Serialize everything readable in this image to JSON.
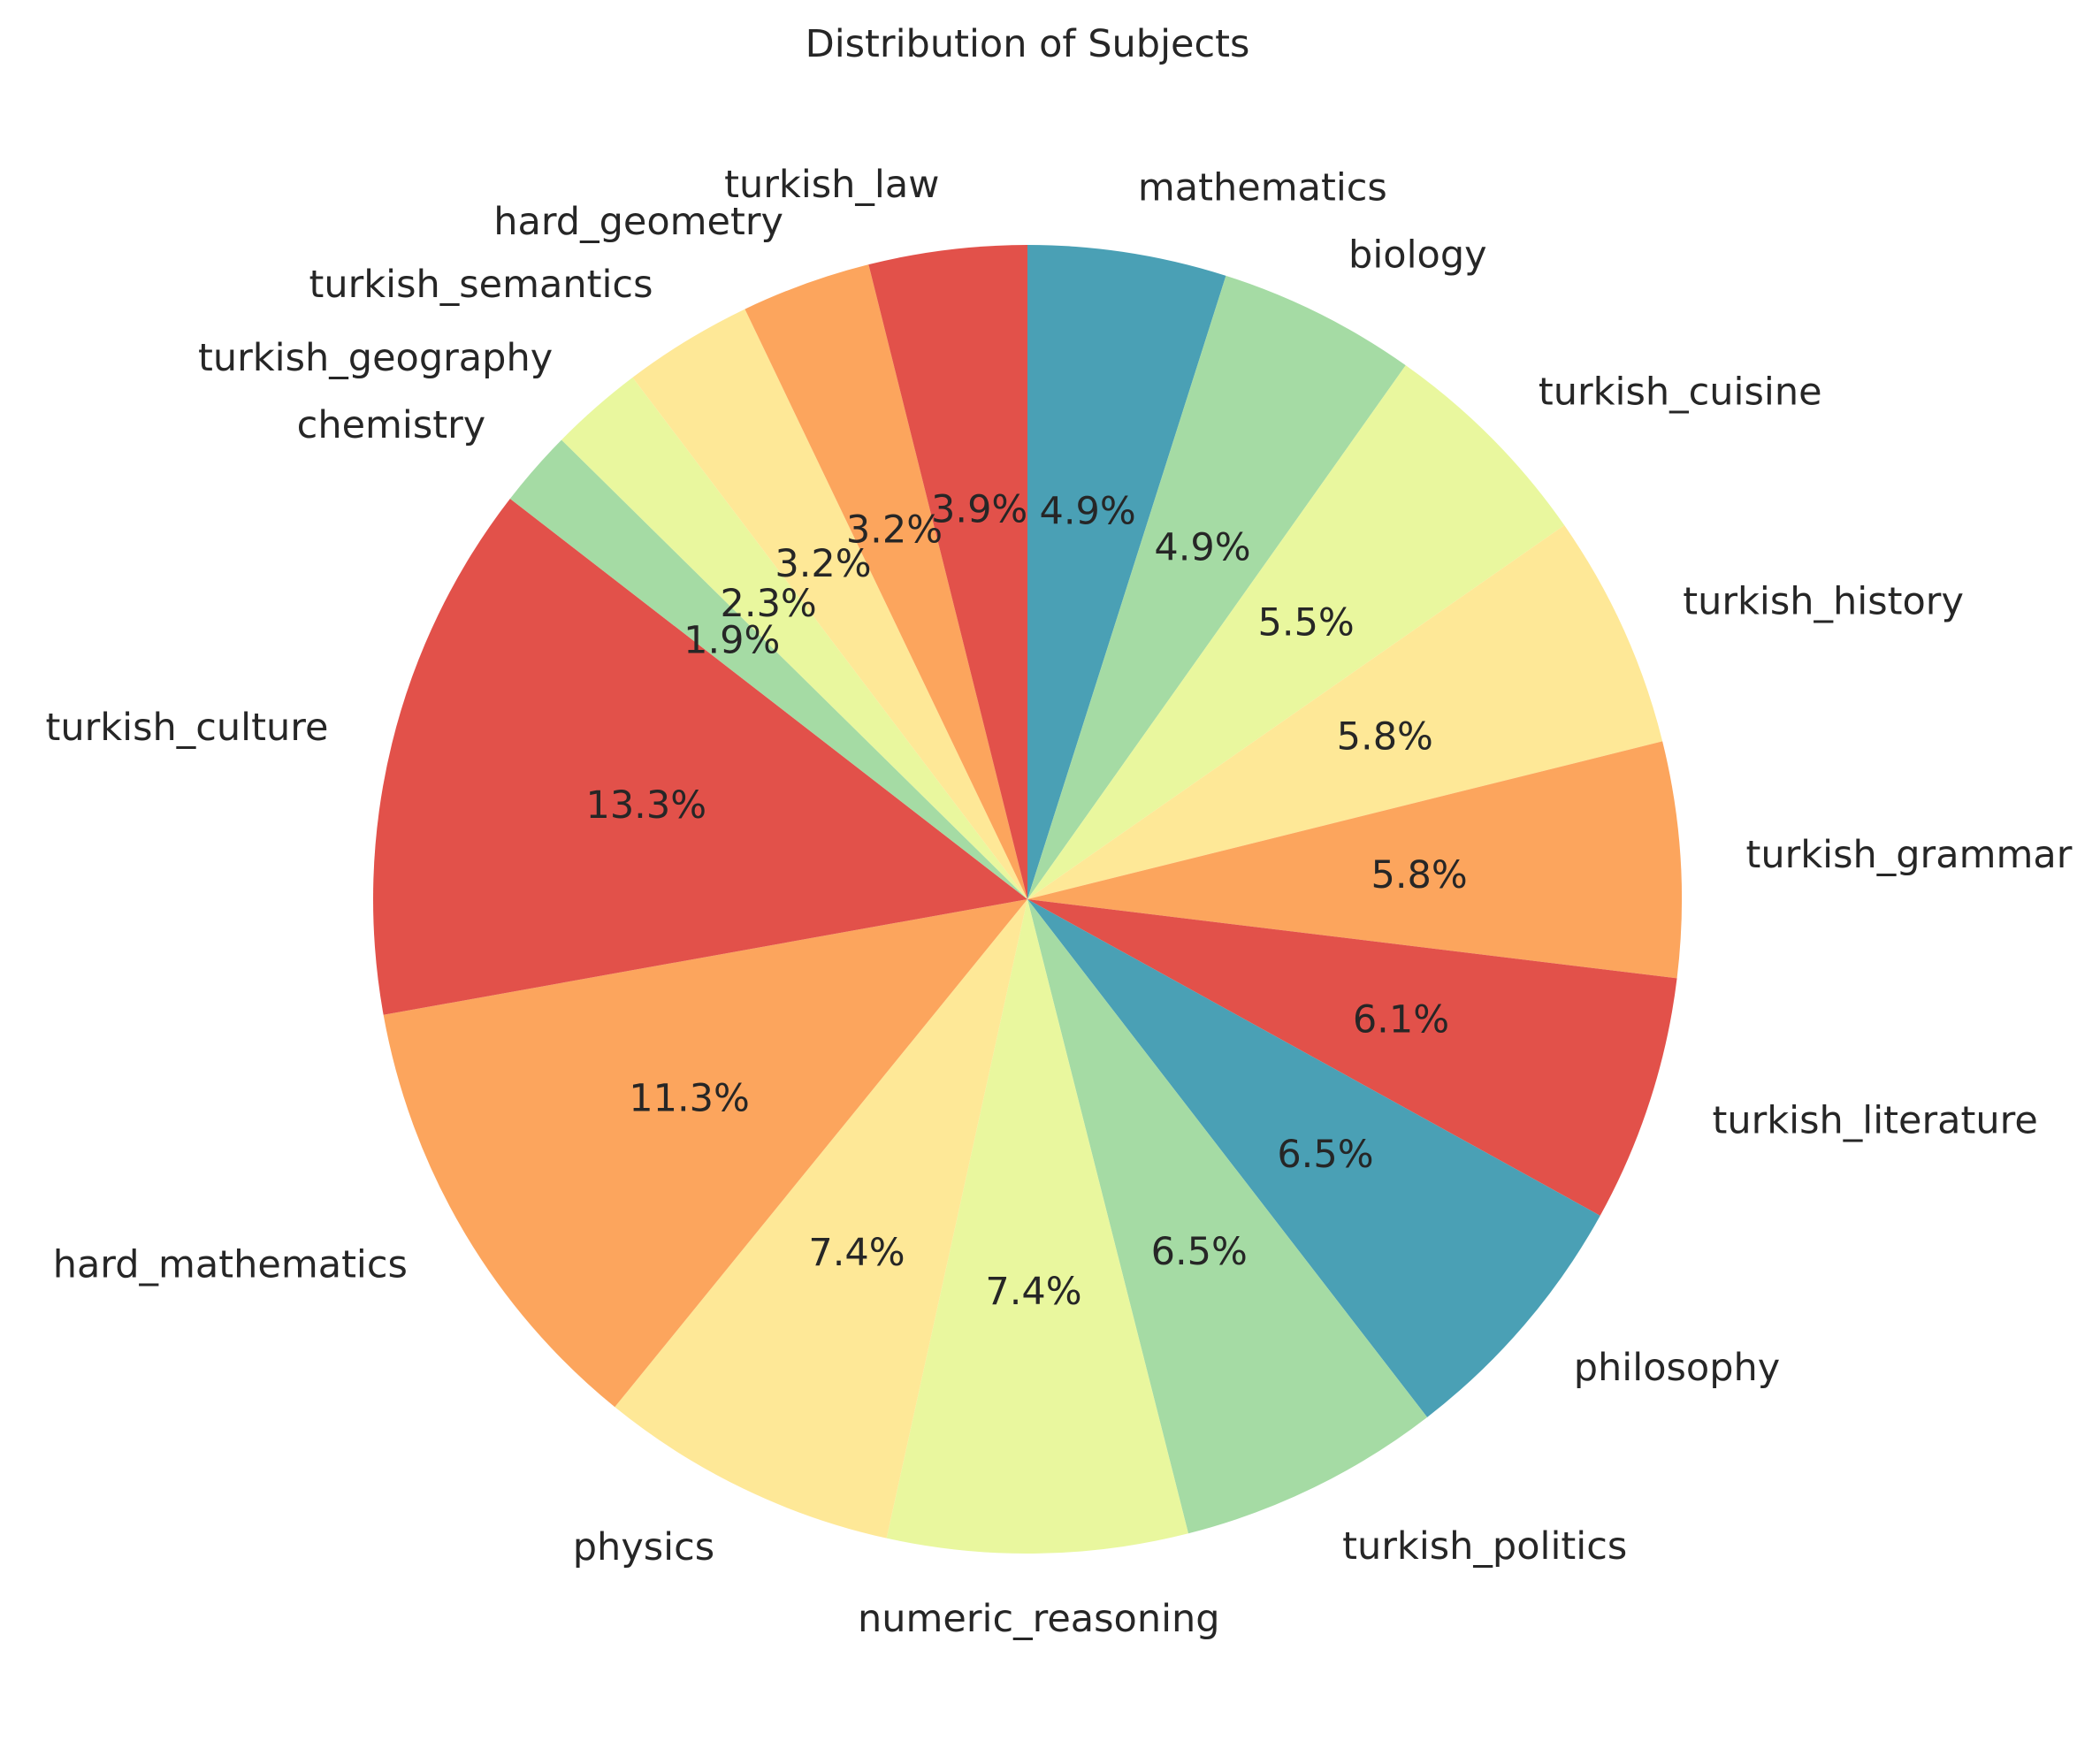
{
  "chart_data": {
    "type": "pie",
    "title": "Distribution of Subjects",
    "slices": [
      {
        "label": "mathematics",
        "value": 4.9,
        "pct_label": "4.9%",
        "color": "#4aa0b5"
      },
      {
        "label": "biology",
        "value": 4.9,
        "pct_label": "4.9%",
        "color": "#a5dba4"
      },
      {
        "label": "turkish_cuisine",
        "value": 5.5,
        "pct_label": "5.5%",
        "color": "#e9f79e"
      },
      {
        "label": "turkish_history",
        "value": 5.8,
        "pct_label": "5.8%",
        "color": "#fee897"
      },
      {
        "label": "turkish_grammar",
        "value": 5.8,
        "pct_label": "5.8%",
        "color": "#fca55d"
      },
      {
        "label": "turkish_literature",
        "value": 6.1,
        "pct_label": "6.1%",
        "color": "#e2514a"
      },
      {
        "label": "philosophy",
        "value": 6.5,
        "pct_label": "6.5%",
        "color": "#4aa0b5"
      },
      {
        "label": "turkish_politics",
        "value": 6.5,
        "pct_label": "6.5%",
        "color": "#a5dba4"
      },
      {
        "label": "numeric_reasoning",
        "value": 7.4,
        "pct_label": "7.4%",
        "color": "#e9f79e"
      },
      {
        "label": "physics",
        "value": 7.4,
        "pct_label": "7.4%",
        "color": "#fee897"
      },
      {
        "label": "hard_mathematics",
        "value": 11.3,
        "pct_label": "11.3%",
        "color": "#fca55d"
      },
      {
        "label": "turkish_culture",
        "value": 13.3,
        "pct_label": "13.3%",
        "color": "#e2514a"
      },
      {
        "label": "chemistry",
        "value": 1.9,
        "pct_label": "1.9%",
        "color": "#a5dba4"
      },
      {
        "label": "turkish_geography",
        "value": 2.3,
        "pct_label": "2.3%",
        "color": "#e9f79e"
      },
      {
        "label": "turkish_semantics",
        "value": 3.2,
        "pct_label": "3.2%",
        "color": "#fee897"
      },
      {
        "label": "hard_geometry",
        "value": 3.2,
        "pct_label": "3.2%",
        "color": "#fca55d"
      },
      {
        "label": "turkish_law",
        "value": 3.9,
        "pct_label": "3.9%",
        "color": "#e2514a"
      }
    ],
    "direction": "clockwise",
    "start": "top",
    "legend": "none"
  }
}
